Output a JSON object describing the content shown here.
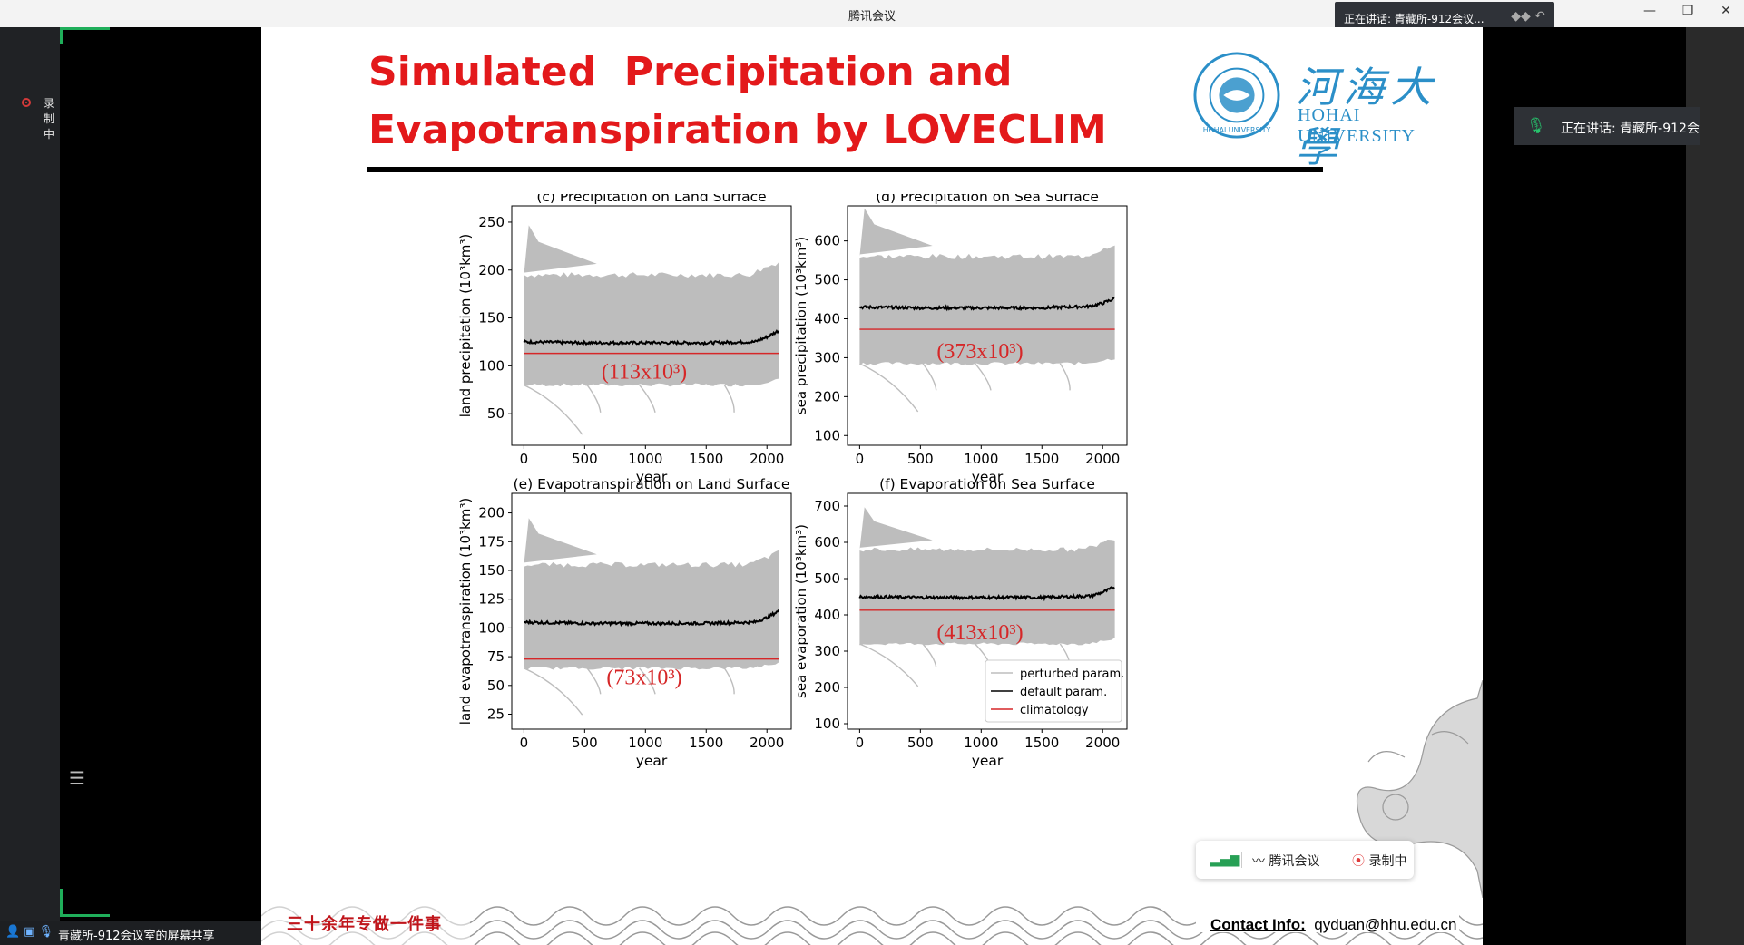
{
  "window": {
    "title": "腾讯会议",
    "controls": [
      "—",
      "❐",
      "✕"
    ],
    "speaking_top": "正在讲话: 青藏所-912会议...",
    "speaking_side": "正在讲话: 青藏所-912会",
    "recording_label": "录制中",
    "bottom_share_label": "青藏所-912会议室的屏幕共享"
  },
  "floating_toolbar": {
    "app_label": "腾讯会议",
    "record_label": "录制中"
  },
  "slide": {
    "title_line1": "Simulated  Precipitation and",
    "title_line2": "Evapotranspiration by LOVECLIM",
    "logo_cn": "河海大學",
    "logo_en": "HOHAI UNIVERSITY",
    "seal_text": "HOHAI UNIVERSITY",
    "footer_slogan": "三十余年专做一件事",
    "contact_label": "Contact Info:",
    "contact_value": "qyduan@hhu.edu.cn"
  },
  "colors": {
    "title_red": "#e3191b",
    "hohai_blue": "#2b8fc8",
    "accent_green": "#1fae5a",
    "climatology_red": "#d62728"
  },
  "chart_data": [
    {
      "type": "line",
      "title": "(c) Precipitation on Land Surface",
      "xlabel": "year",
      "ylabel": "land precipitation (10³km³)",
      "xlim": [
        -100,
        2200
      ],
      "ylim": [
        17,
        267
      ],
      "xticks": [
        0,
        500,
        1000,
        1500,
        2000
      ],
      "yticks": [
        50,
        100,
        150,
        200,
        250
      ],
      "series": [
        {
          "name": "perturbed param.",
          "band": [
            80,
            195
          ],
          "x": [
            0,
            2100
          ],
          "style": "envelope"
        },
        {
          "name": "default param.",
          "x": [
            0,
            500,
            1000,
            1500,
            1900,
            2000,
            2100
          ],
          "values": [
            125,
            124,
            124,
            124,
            125,
            130,
            137
          ]
        },
        {
          "name": "climatology",
          "x": [
            0,
            2100
          ],
          "values": [
            113,
            113
          ]
        }
      ],
      "annotation": "(113x10³)"
    },
    {
      "type": "line",
      "title": "(d) Precipitation on Sea Surface",
      "xlabel": "year",
      "ylabel": "sea precipitation (10³km³)",
      "xlim": [
        -100,
        2200
      ],
      "ylim": [
        75,
        690
      ],
      "xticks": [
        0,
        500,
        1000,
        1500,
        2000
      ],
      "yticks": [
        100,
        200,
        300,
        400,
        500,
        600
      ],
      "series": [
        {
          "name": "perturbed param.",
          "band": [
            285,
            560
          ],
          "x": [
            0,
            2100
          ],
          "style": "envelope"
        },
        {
          "name": "default param.",
          "x": [
            0,
            500,
            1000,
            1500,
            1900,
            2000,
            2100
          ],
          "values": [
            430,
            428,
            428,
            428,
            432,
            440,
            452
          ]
        },
        {
          "name": "climatology",
          "x": [
            0,
            2100
          ],
          "values": [
            373,
            373
          ]
        }
      ],
      "annotation": "(373x10³)"
    },
    {
      "type": "line",
      "title": "(e) Evapotranspiration on Land Surface",
      "xlabel": "year",
      "ylabel": "land evapotranspiration (10³km³)",
      "xlim": [
        -100,
        2200
      ],
      "ylim": [
        12,
        217
      ],
      "xticks": [
        0,
        500,
        1000,
        1500,
        2000
      ],
      "yticks": [
        25,
        50,
        75,
        100,
        125,
        150,
        175,
        200
      ],
      "series": [
        {
          "name": "perturbed param.",
          "band": [
            65,
            155
          ],
          "x": [
            0,
            2100
          ],
          "style": "envelope"
        },
        {
          "name": "default param.",
          "x": [
            0,
            500,
            1000,
            1500,
            1900,
            2000,
            2100
          ],
          "values": [
            105,
            104,
            104,
            104,
            105,
            109,
            115
          ]
        },
        {
          "name": "climatology",
          "x": [
            0,
            2100
          ],
          "values": [
            73,
            73
          ]
        }
      ],
      "annotation": "(73x10³)"
    },
    {
      "type": "line",
      "title": "(f) Evaporation on Sea Surface",
      "xlabel": "year",
      "ylabel": "sea evaporation (10³km³)",
      "xlim": [
        -100,
        2200
      ],
      "ylim": [
        85,
        735
      ],
      "xticks": [
        0,
        500,
        1000,
        1500,
        2000
      ],
      "yticks": [
        100,
        200,
        300,
        400,
        500,
        600,
        700
      ],
      "series": [
        {
          "name": "perturbed param.",
          "band": [
            320,
            580
          ],
          "x": [
            0,
            2100
          ],
          "style": "envelope"
        },
        {
          "name": "default param.",
          "x": [
            0,
            500,
            1000,
            1500,
            1900,
            2000,
            2100
          ],
          "values": [
            450,
            448,
            448,
            448,
            452,
            462,
            477
          ]
        },
        {
          "name": "climatology",
          "x": [
            0,
            2100
          ],
          "values": [
            413,
            413
          ]
        }
      ],
      "annotation": "(413x10³)",
      "legend": [
        "perturbed param.",
        "default param.",
        "climatology"
      ],
      "legend_position": "lower-right"
    }
  ]
}
